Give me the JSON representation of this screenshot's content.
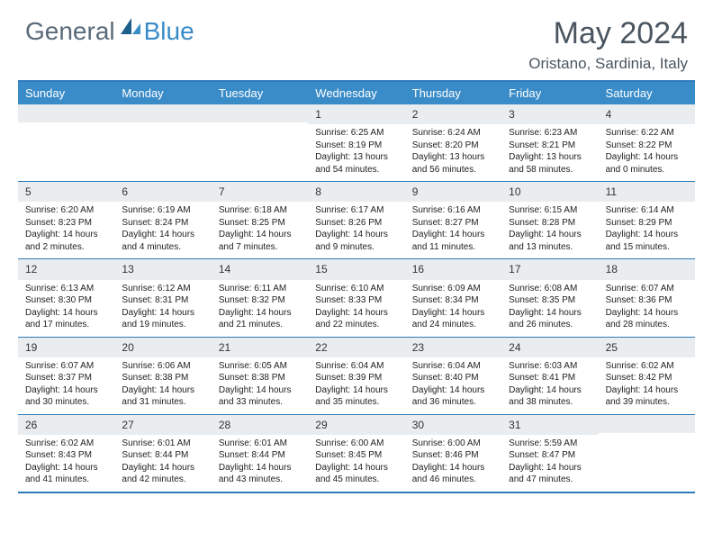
{
  "brand": {
    "part1": "General",
    "part2": "Blue"
  },
  "title": "May 2024",
  "location": "Oristano, Sardinia, Italy",
  "colors": {
    "header_bg": "#3a8cc9",
    "border": "#2d7bb8",
    "daynum_bg": "#e9edf0",
    "logo_gray": "#5a6a7a",
    "logo_blue": "#3a8cc9",
    "text": "#4a5560"
  },
  "days_of_week": [
    "Sunday",
    "Monday",
    "Tuesday",
    "Wednesday",
    "Thursday",
    "Friday",
    "Saturday"
  ],
  "weeks": [
    [
      null,
      null,
      null,
      {
        "n": "1",
        "sr": "6:25 AM",
        "ss": "8:19 PM",
        "dl": "13 hours and 54 minutes."
      },
      {
        "n": "2",
        "sr": "6:24 AM",
        "ss": "8:20 PM",
        "dl": "13 hours and 56 minutes."
      },
      {
        "n": "3",
        "sr": "6:23 AM",
        "ss": "8:21 PM",
        "dl": "13 hours and 58 minutes."
      },
      {
        "n": "4",
        "sr": "6:22 AM",
        "ss": "8:22 PM",
        "dl": "14 hours and 0 minutes."
      }
    ],
    [
      {
        "n": "5",
        "sr": "6:20 AM",
        "ss": "8:23 PM",
        "dl": "14 hours and 2 minutes."
      },
      {
        "n": "6",
        "sr": "6:19 AM",
        "ss": "8:24 PM",
        "dl": "14 hours and 4 minutes."
      },
      {
        "n": "7",
        "sr": "6:18 AM",
        "ss": "8:25 PM",
        "dl": "14 hours and 7 minutes."
      },
      {
        "n": "8",
        "sr": "6:17 AM",
        "ss": "8:26 PM",
        "dl": "14 hours and 9 minutes."
      },
      {
        "n": "9",
        "sr": "6:16 AM",
        "ss": "8:27 PM",
        "dl": "14 hours and 11 minutes."
      },
      {
        "n": "10",
        "sr": "6:15 AM",
        "ss": "8:28 PM",
        "dl": "14 hours and 13 minutes."
      },
      {
        "n": "11",
        "sr": "6:14 AM",
        "ss": "8:29 PM",
        "dl": "14 hours and 15 minutes."
      }
    ],
    [
      {
        "n": "12",
        "sr": "6:13 AM",
        "ss": "8:30 PM",
        "dl": "14 hours and 17 minutes."
      },
      {
        "n": "13",
        "sr": "6:12 AM",
        "ss": "8:31 PM",
        "dl": "14 hours and 19 minutes."
      },
      {
        "n": "14",
        "sr": "6:11 AM",
        "ss": "8:32 PM",
        "dl": "14 hours and 21 minutes."
      },
      {
        "n": "15",
        "sr": "6:10 AM",
        "ss": "8:33 PM",
        "dl": "14 hours and 22 minutes."
      },
      {
        "n": "16",
        "sr": "6:09 AM",
        "ss": "8:34 PM",
        "dl": "14 hours and 24 minutes."
      },
      {
        "n": "17",
        "sr": "6:08 AM",
        "ss": "8:35 PM",
        "dl": "14 hours and 26 minutes."
      },
      {
        "n": "18",
        "sr": "6:07 AM",
        "ss": "8:36 PM",
        "dl": "14 hours and 28 minutes."
      }
    ],
    [
      {
        "n": "19",
        "sr": "6:07 AM",
        "ss": "8:37 PM",
        "dl": "14 hours and 30 minutes."
      },
      {
        "n": "20",
        "sr": "6:06 AM",
        "ss": "8:38 PM",
        "dl": "14 hours and 31 minutes."
      },
      {
        "n": "21",
        "sr": "6:05 AM",
        "ss": "8:38 PM",
        "dl": "14 hours and 33 minutes."
      },
      {
        "n": "22",
        "sr": "6:04 AM",
        "ss": "8:39 PM",
        "dl": "14 hours and 35 minutes."
      },
      {
        "n": "23",
        "sr": "6:04 AM",
        "ss": "8:40 PM",
        "dl": "14 hours and 36 minutes."
      },
      {
        "n": "24",
        "sr": "6:03 AM",
        "ss": "8:41 PM",
        "dl": "14 hours and 38 minutes."
      },
      {
        "n": "25",
        "sr": "6:02 AM",
        "ss": "8:42 PM",
        "dl": "14 hours and 39 minutes."
      }
    ],
    [
      {
        "n": "26",
        "sr": "6:02 AM",
        "ss": "8:43 PM",
        "dl": "14 hours and 41 minutes."
      },
      {
        "n": "27",
        "sr": "6:01 AM",
        "ss": "8:44 PM",
        "dl": "14 hours and 42 minutes."
      },
      {
        "n": "28",
        "sr": "6:01 AM",
        "ss": "8:44 PM",
        "dl": "14 hours and 43 minutes."
      },
      {
        "n": "29",
        "sr": "6:00 AM",
        "ss": "8:45 PM",
        "dl": "14 hours and 45 minutes."
      },
      {
        "n": "30",
        "sr": "6:00 AM",
        "ss": "8:46 PM",
        "dl": "14 hours and 46 minutes."
      },
      {
        "n": "31",
        "sr": "5:59 AM",
        "ss": "8:47 PM",
        "dl": "14 hours and 47 minutes."
      },
      null
    ]
  ],
  "labels": {
    "sunrise": "Sunrise: ",
    "sunset": "Sunset: ",
    "daylight": "Daylight: "
  }
}
